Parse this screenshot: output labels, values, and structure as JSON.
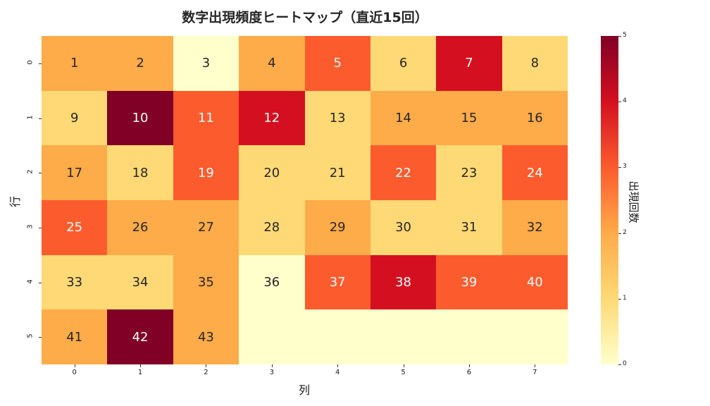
{
  "chart_data": {
    "type": "heatmap",
    "title": "数字出現頻度ヒートマップ（直近15回）",
    "xlabel": "列",
    "ylabel": "行",
    "x_ticks": [
      "0",
      "1",
      "2",
      "3",
      "4",
      "5",
      "6",
      "7"
    ],
    "y_ticks": [
      "0",
      "1",
      "2",
      "3",
      "4",
      "5"
    ],
    "colormap": "YlOrRd",
    "colorbar": {
      "label": "出現回数",
      "min": 0,
      "max": 5,
      "ticks": [
        "0",
        "1",
        "2",
        "3",
        "4",
        "5"
      ]
    },
    "annotations": [
      [
        1,
        2,
        3,
        4,
        5,
        6,
        7,
        8
      ],
      [
        9,
        10,
        11,
        12,
        13,
        14,
        15,
        16
      ],
      [
        17,
        18,
        19,
        20,
        21,
        22,
        23,
        24
      ],
      [
        25,
        26,
        27,
        28,
        29,
        30,
        31,
        32
      ],
      [
        33,
        34,
        35,
        36,
        37,
        38,
        39,
        40
      ],
      [
        41,
        42,
        43,
        "",
        "",
        "",
        "",
        ""
      ]
    ],
    "values": [
      [
        2,
        2,
        0,
        2,
        3,
        1,
        4,
        1
      ],
      [
        1,
        5,
        3,
        4,
        1,
        2,
        2,
        2
      ],
      [
        2,
        1,
        3,
        1,
        1,
        3,
        1,
        3
      ],
      [
        3,
        2,
        2,
        1,
        2,
        1,
        1,
        2
      ],
      [
        1,
        1,
        2,
        0,
        3,
        4,
        3,
        3
      ],
      [
        2,
        5,
        2,
        0,
        0,
        0,
        0,
        0
      ]
    ]
  },
  "colors": {
    "0": "#ffffcc",
    "1": "#fed976",
    "2": "#feab49",
    "3": "#fc5b2e",
    "4": "#d41020",
    "5": "#800026"
  }
}
